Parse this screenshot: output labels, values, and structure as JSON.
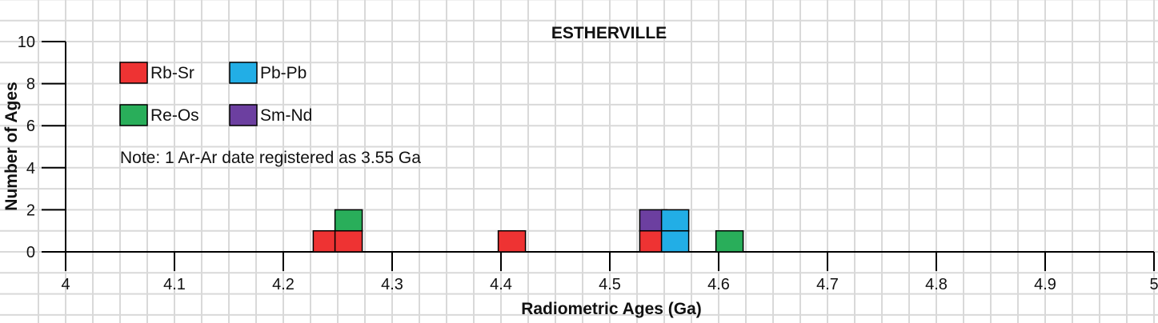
{
  "chart_data": {
    "type": "bar",
    "title": "ESTHERVILLE",
    "xlabel": "Radiometric Ages (Ga)",
    "ylabel": "Number of Ages",
    "xlim": [
      4,
      5
    ],
    "ylim": [
      0,
      10
    ],
    "x_ticks": [
      "4",
      "4.1",
      "4.2",
      "4.3",
      "4.4",
      "4.5",
      "4.6",
      "4.7",
      "4.8",
      "4.9",
      "5"
    ],
    "y_ticks": [
      "0",
      "2",
      "4",
      "6",
      "8",
      "10"
    ],
    "grid": true,
    "legend_position": "top-left",
    "note": "Note: 1 Ar-Ar date registered as 3.55 Ga",
    "series": [
      {
        "name": "Rb-Sr",
        "color": "#ee3333"
      },
      {
        "name": "Pb-Pb",
        "color": "#22aee6"
      },
      {
        "name": "Re-Os",
        "color": "#29ae5a"
      },
      {
        "name": "Sm-Nd",
        "color": "#6c3fa0"
      }
    ],
    "blocks": [
      {
        "series": "Rb-Sr",
        "x": 4.24,
        "stack": 0
      },
      {
        "series": "Rb-Sr",
        "x": 4.26,
        "stack": 0
      },
      {
        "series": "Re-Os",
        "x": 4.26,
        "stack": 1
      },
      {
        "series": "Rb-Sr",
        "x": 4.41,
        "stack": 0
      },
      {
        "series": "Rb-Sr",
        "x": 4.54,
        "stack": 0
      },
      {
        "series": "Sm-Nd",
        "x": 4.54,
        "stack": 1
      },
      {
        "series": "Pb-Pb",
        "x": 4.56,
        "stack": 0
      },
      {
        "series": "Pb-Pb",
        "x": 4.56,
        "stack": 1
      },
      {
        "series": "Re-Os",
        "x": 4.61,
        "stack": 0
      }
    ]
  }
}
